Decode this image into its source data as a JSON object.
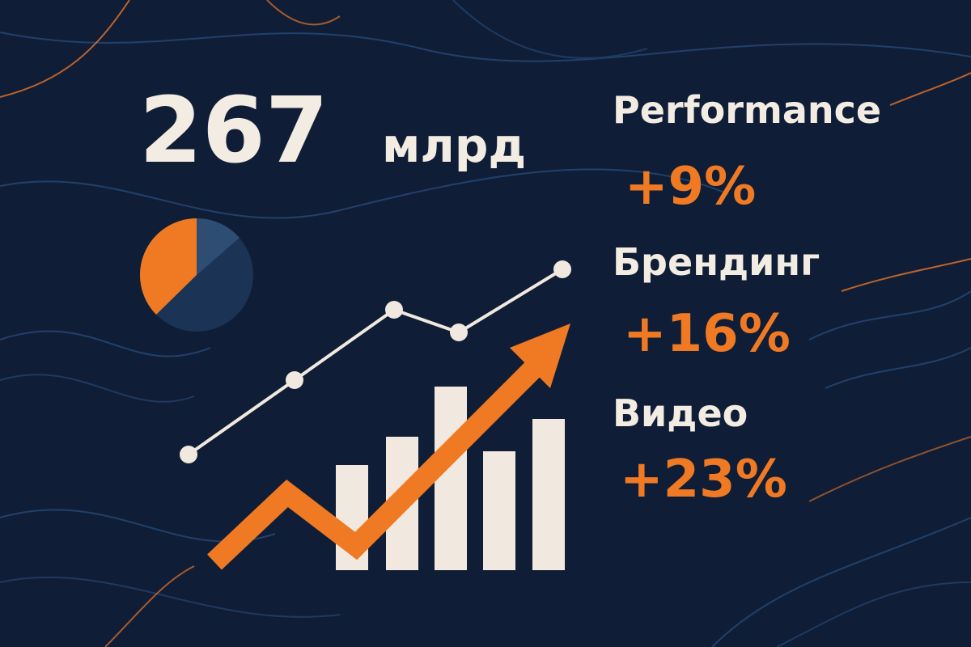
{
  "headline": {
    "value": "267",
    "unit": "млрд"
  },
  "metrics": [
    {
      "label": "Performance",
      "change": "+9%"
    },
    {
      "label": "Брендинг",
      "change": "+16%"
    },
    {
      "label": "Видео",
      "change": "+23%"
    }
  ]
}
